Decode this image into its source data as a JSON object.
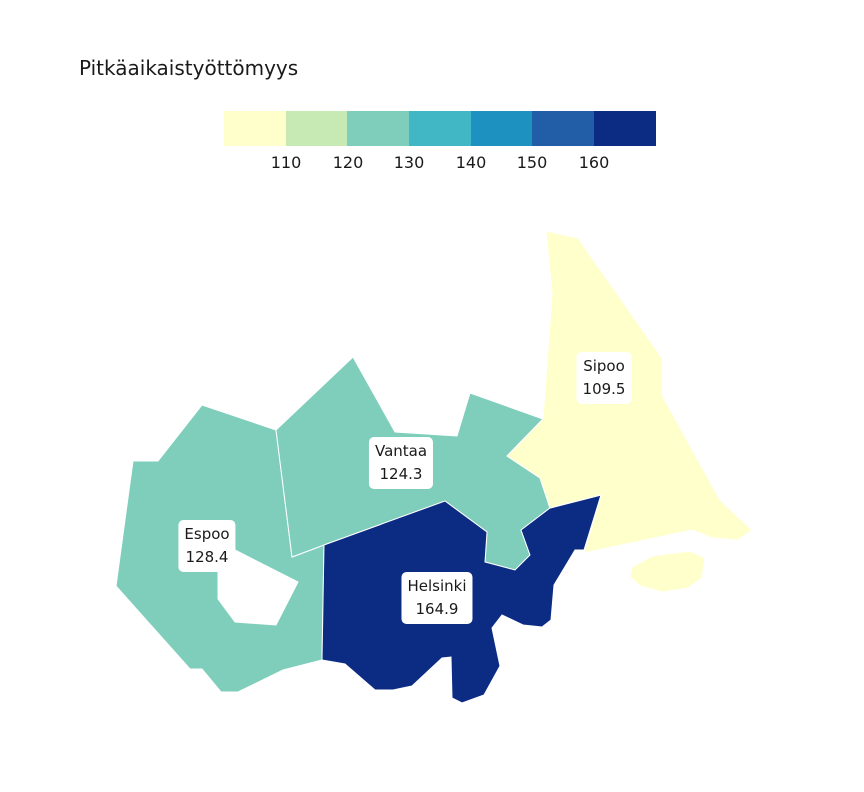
{
  "title": "Pitkäaikaistyöttömyys",
  "legend": {
    "colors": [
      "#ffffcc",
      "#c7e9b4",
      "#7fcdbb",
      "#41b6c4",
      "#1d91c0",
      "#225ea8",
      "#0c2c84"
    ],
    "ticks": [
      "110",
      "120",
      "130",
      "140",
      "150",
      "160"
    ]
  },
  "regions": [
    {
      "name": "Espoo",
      "value": "128.4",
      "color": "#7fcdbb"
    },
    {
      "name": "Vantaa",
      "value": "124.3",
      "color": "#7fcdbb"
    },
    {
      "name": "Helsinki",
      "value": "164.9",
      "color": "#0c2c84"
    },
    {
      "name": "Sipoo",
      "value": "109.5",
      "color": "#ffffcc"
    }
  ]
}
